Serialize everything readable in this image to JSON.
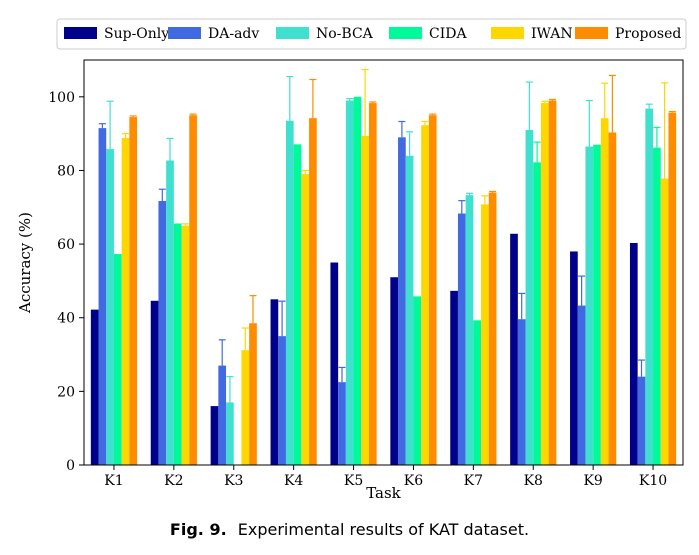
{
  "caption": {
    "label": "Fig. 9.",
    "text": "Experimental results of KAT dataset."
  },
  "chart_data": {
    "type": "bar",
    "xlabel": "Task",
    "ylabel": "Accuracy (%)",
    "ylim": [
      0,
      110
    ],
    "yticks": [
      0,
      20,
      40,
      60,
      80,
      100
    ],
    "grid": false,
    "legend_position": "top",
    "error_bars": true,
    "categories": [
      "K1",
      "K2",
      "K3",
      "K4",
      "K5",
      "K6",
      "K7",
      "K8",
      "K9",
      "K10"
    ],
    "series": [
      {
        "name": "Sup-Only",
        "color": "#00008b",
        "values": [
          42.2,
          44.6,
          16.0,
          45.0,
          55.0,
          51.0,
          47.3,
          62.8,
          58.0,
          60.3
        ],
        "errors": [
          0,
          0,
          0,
          0,
          0,
          0,
          0,
          0,
          0,
          0
        ]
      },
      {
        "name": "DA-adv",
        "color": "#4169e1",
        "values": [
          91.5,
          71.7,
          27.0,
          35.0,
          22.5,
          89.0,
          68.3,
          39.6,
          43.3,
          24.0
        ],
        "errors": [
          1.2,
          3.2,
          7.0,
          9.5,
          4.0,
          4.3,
          3.5,
          7.0,
          8.0,
          4.5
        ]
      },
      {
        "name": "No-BCA",
        "color": "#40e0d0",
        "values": [
          85.8,
          82.7,
          17.0,
          93.5,
          99.0,
          84.0,
          73.3,
          91.0,
          86.5,
          96.8
        ],
        "errors": [
          13.0,
          6.0,
          7.0,
          12.0,
          0.5,
          6.5,
          0.5,
          13.0,
          12.5,
          1.2
        ]
      },
      {
        "name": "CIDA",
        "color": "#00fa9a",
        "values": [
          57.3,
          65.6,
          0.0,
          87.1,
          100.0,
          45.8,
          39.3,
          82.2,
          87.0,
          86.2
        ],
        "errors": [
          0,
          0,
          0,
          0,
          0,
          0,
          0,
          5.5,
          0,
          5.5
        ]
      },
      {
        "name": "IWAN",
        "color": "#ffd700",
        "values": [
          88.8,
          65.0,
          31.2,
          79.0,
          89.4,
          92.3,
          70.8,
          98.3,
          94.2,
          77.8
        ],
        "errors": [
          1.2,
          0.5,
          6.0,
          1.0,
          18.0,
          1.0,
          2.3,
          0.5,
          9.5,
          26.0
        ]
      },
      {
        "name": "Proposed",
        "color": "#ff8c00",
        "values": [
          94.5,
          95.0,
          38.5,
          94.2,
          98.3,
          95.0,
          74.0,
          99.0,
          90.3,
          95.7
        ],
        "errors": [
          0.3,
          0.3,
          7.5,
          10.5,
          0.3,
          0.3,
          0.3,
          0.3,
          15.5,
          0.3
        ]
      }
    ]
  }
}
